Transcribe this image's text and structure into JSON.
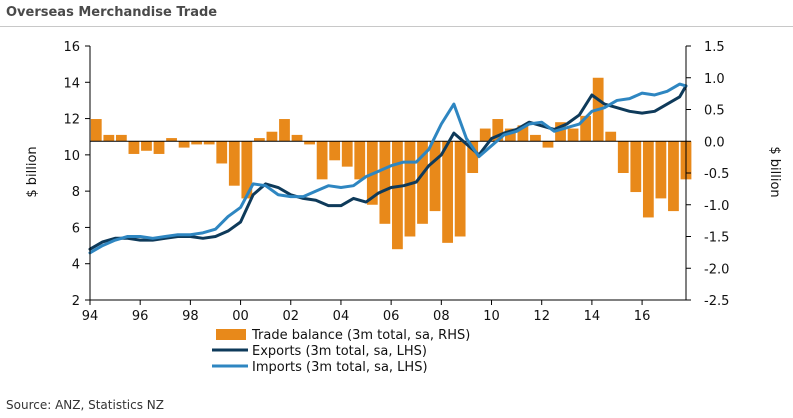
{
  "chart_data": {
    "type": "bar+line",
    "title": "Overseas Merchandise Trade",
    "source": "Source: ANZ, Statistics NZ",
    "x_ticks": [
      "94",
      "96",
      "98",
      "00",
      "02",
      "04",
      "06",
      "08",
      "10",
      "12",
      "14",
      "16"
    ],
    "xlim": [
      1994,
      2017.75
    ],
    "left_axis": {
      "label": "$ billion",
      "ylim": [
        2,
        16
      ],
      "ticks": [
        "2",
        "4",
        "6",
        "8",
        "10",
        "12",
        "14",
        "16"
      ]
    },
    "right_axis": {
      "label": "$ billion",
      "ylim": [
        -2.5,
        1.5
      ],
      "ticks": [
        "-2.5",
        "-2.0",
        "-1.5",
        "-1.0",
        "-0.5",
        "0.0",
        "0.5",
        "1.0",
        "1.5"
      ]
    },
    "colors": {
      "trade_balance": "#E8891A",
      "exports": "#0E3A5A",
      "imports": "#2E86C1"
    },
    "legend": [
      {
        "key": "trade_balance",
        "label": "Trade balance (3m total, sa, RHS)"
      },
      {
        "key": "exports",
        "label": "Exports (3m total, sa, LHS)"
      },
      {
        "key": "imports",
        "label": "Imports (3m total, sa, LHS)"
      }
    ],
    "series": [
      {
        "name": "Trade balance (3m total, sa, RHS)",
        "kind": "bar",
        "axis": "right",
        "x": [
          1994,
          1994.5,
          1995,
          1995.5,
          1996,
          1996.5,
          1997,
          1997.5,
          1998,
          1998.5,
          1999,
          1999.5,
          2000,
          2000.5,
          2001,
          2001.5,
          2002,
          2002.5,
          2003,
          2003.5,
          2004,
          2004.5,
          2005,
          2005.5,
          2006,
          2006.5,
          2007,
          2007.5,
          2008,
          2008.5,
          2009,
          2009.5,
          2010,
          2010.5,
          2011,
          2011.5,
          2012,
          2012.5,
          2013,
          2013.5,
          2014,
          2014.5,
          2015,
          2015.5,
          2016,
          2016.5,
          2017,
          2017.5
        ],
        "values": [
          0.35,
          0.1,
          0.1,
          -0.2,
          -0.15,
          -0.2,
          0.05,
          -0.1,
          -0.05,
          -0.05,
          -0.35,
          -0.7,
          -0.9,
          0.05,
          0.15,
          0.35,
          0.1,
          -0.05,
          -0.6,
          -0.3,
          -0.4,
          -0.6,
          -1.0,
          -1.3,
          -1.7,
          -1.5,
          -1.3,
          -1.1,
          -1.6,
          -1.5,
          -0.5,
          0.2,
          0.35,
          0.2,
          0.25,
          0.1,
          -0.1,
          0.3,
          0.2,
          0.4,
          1.0,
          0.15,
          -0.5,
          -0.8,
          -1.2,
          -0.9,
          -1.1,
          -0.6
        ]
      },
      {
        "name": "Exports (3m total, sa, LHS)",
        "kind": "line",
        "axis": "left",
        "x": [
          1994,
          1994.5,
          1995,
          1995.5,
          1996,
          1996.5,
          1997,
          1997.5,
          1998,
          1998.5,
          1999,
          1999.5,
          2000,
          2000.5,
          2001,
          2001.5,
          2002,
          2002.5,
          2003,
          2003.5,
          2004,
          2004.5,
          2005,
          2005.5,
          2006,
          2006.5,
          2007,
          2007.5,
          2008,
          2008.5,
          2009,
          2009.5,
          2010,
          2010.5,
          2011,
          2011.5,
          2012,
          2012.5,
          2013,
          2013.5,
          2014,
          2014.5,
          2015,
          2015.5,
          2016,
          2016.5,
          2017,
          2017.5,
          2017.75
        ],
        "values": [
          4.8,
          5.2,
          5.4,
          5.4,
          5.3,
          5.3,
          5.4,
          5.5,
          5.5,
          5.4,
          5.5,
          5.8,
          6.3,
          7.8,
          8.4,
          8.2,
          7.8,
          7.6,
          7.5,
          7.2,
          7.2,
          7.6,
          7.4,
          7.9,
          8.2,
          8.3,
          8.5,
          9.4,
          10.0,
          11.2,
          10.6,
          10.0,
          10.9,
          11.2,
          11.4,
          11.8,
          11.6,
          11.4,
          11.7,
          12.2,
          13.3,
          12.8,
          12.6,
          12.4,
          12.3,
          12.4,
          12.8,
          13.2,
          13.8
        ]
      },
      {
        "name": "Imports (3m total, sa, LHS)",
        "kind": "line",
        "axis": "left",
        "x": [
          1994,
          1994.5,
          1995,
          1995.5,
          1996,
          1996.5,
          1997,
          1997.5,
          1998,
          1998.5,
          1999,
          1999.5,
          2000,
          2000.5,
          2001,
          2001.5,
          2002,
          2002.5,
          2003,
          2003.5,
          2004,
          2004.5,
          2005,
          2005.5,
          2006,
          2006.5,
          2007,
          2007.5,
          2008,
          2008.5,
          2009,
          2009.5,
          2010,
          2010.5,
          2011,
          2011.5,
          2012,
          2012.5,
          2013,
          2013.5,
          2014,
          2014.5,
          2015,
          2015.5,
          2016,
          2016.5,
          2017,
          2017.5,
          2017.75
        ],
        "values": [
          4.6,
          5.0,
          5.3,
          5.5,
          5.5,
          5.4,
          5.5,
          5.6,
          5.6,
          5.7,
          5.9,
          6.6,
          7.1,
          8.4,
          8.3,
          7.8,
          7.7,
          7.7,
          8.0,
          8.3,
          8.2,
          8.3,
          8.8,
          9.1,
          9.4,
          9.6,
          9.6,
          10.3,
          11.7,
          12.8,
          10.9,
          9.9,
          10.5,
          11.1,
          11.3,
          11.7,
          11.8,
          11.3,
          11.5,
          11.7,
          12.4,
          12.6,
          13.0,
          13.1,
          13.4,
          13.3,
          13.5,
          13.9,
          13.8
        ]
      }
    ]
  }
}
